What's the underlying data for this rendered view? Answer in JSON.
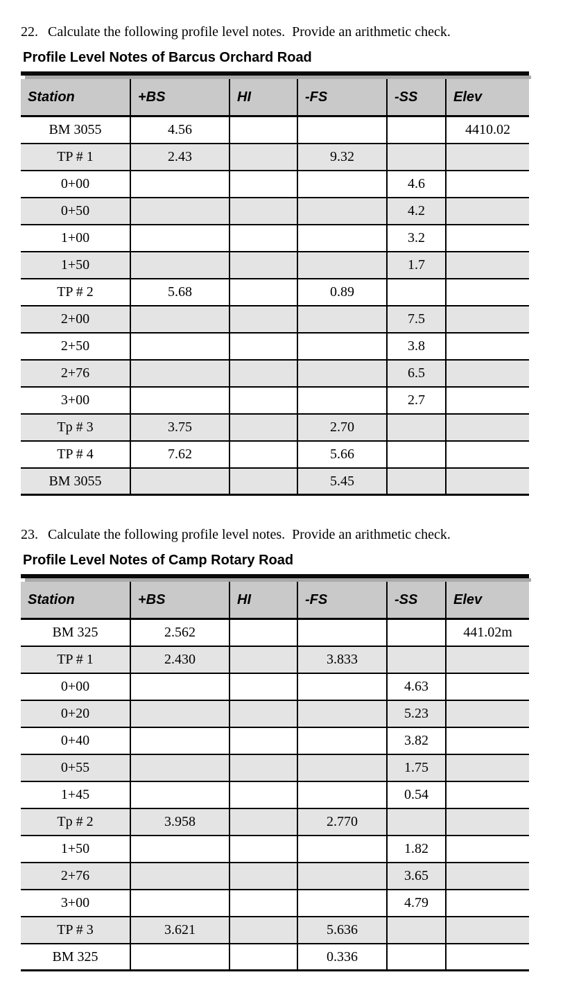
{
  "colors": {
    "header_bg": "#c9c9c9",
    "row_alt_bg": "#e4e4e4",
    "rule_black": "#0a0a0a",
    "rule_shadow_gray": "#a9a9a9",
    "text": "#000000",
    "page_bg": "#ffffff"
  },
  "tables": [
    {
      "number": "22.",
      "instruction": "Calculate the following profile level notes.  Provide an arithmetic check.",
      "title": "Profile Level Notes of Barcus Orchard Road",
      "columns": [
        "Station",
        "+BS",
        "HI",
        "-FS",
        "-SS",
        "Elev"
      ],
      "rows": [
        [
          "BM 3055",
          "4.56",
          "",
          "",
          "",
          "4410.02"
        ],
        [
          "TP # 1",
          "2.43",
          "",
          "9.32",
          "",
          ""
        ],
        [
          "0+00",
          "",
          "",
          "",
          "4.6",
          ""
        ],
        [
          "0+50",
          "",
          "",
          "",
          "4.2",
          ""
        ],
        [
          "1+00",
          "",
          "",
          "",
          "3.2",
          ""
        ],
        [
          "1+50",
          "",
          "",
          "",
          "1.7",
          ""
        ],
        [
          "TP # 2",
          "5.68",
          "",
          "0.89",
          "",
          ""
        ],
        [
          "2+00",
          "",
          "",
          "",
          "7.5",
          ""
        ],
        [
          "2+50",
          "",
          "",
          "",
          "3.8",
          ""
        ],
        [
          "2+76",
          "",
          "",
          "",
          "6.5",
          ""
        ],
        [
          "3+00",
          "",
          "",
          "",
          "2.7",
          ""
        ],
        [
          "Tp # 3",
          "3.75",
          "",
          "2.70",
          "",
          ""
        ],
        [
          "TP # 4",
          "7.62",
          "",
          "5.66",
          "",
          ""
        ],
        [
          "BM 3055",
          "",
          "",
          "5.45",
          "",
          ""
        ]
      ]
    },
    {
      "number": "23.",
      "instruction": "Calculate the following profile level notes.  Provide an arithmetic check.",
      "title": "Profile Level Notes of Camp Rotary Road",
      "columns": [
        "Station",
        "+BS",
        "HI",
        "-FS",
        "-SS",
        "Elev"
      ],
      "rows": [
        [
          "BM 325",
          "2.562",
          "",
          "",
          "",
          "441.02m"
        ],
        [
          "TP # 1",
          "2.430",
          "",
          "3.833",
          "",
          ""
        ],
        [
          "0+00",
          "",
          "",
          "",
          "4.63",
          ""
        ],
        [
          "0+20",
          "",
          "",
          "",
          "5.23",
          ""
        ],
        [
          "0+40",
          "",
          "",
          "",
          "3.82",
          ""
        ],
        [
          "0+55",
          "",
          "",
          "",
          "1.75",
          ""
        ],
        [
          "1+45",
          "",
          "",
          "",
          "0.54",
          ""
        ],
        [
          "Tp # 2",
          "3.958",
          "",
          "2.770",
          "",
          ""
        ],
        [
          "1+50",
          "",
          "",
          "",
          "1.82",
          ""
        ],
        [
          "2+76",
          "",
          "",
          "",
          "3.65",
          ""
        ],
        [
          "3+00",
          "",
          "",
          "",
          "4.79",
          ""
        ],
        [
          "TP # 3",
          "3.621",
          "",
          "5.636",
          "",
          ""
        ],
        [
          "BM 325",
          "",
          "",
          "0.336",
          "",
          ""
        ]
      ]
    }
  ]
}
